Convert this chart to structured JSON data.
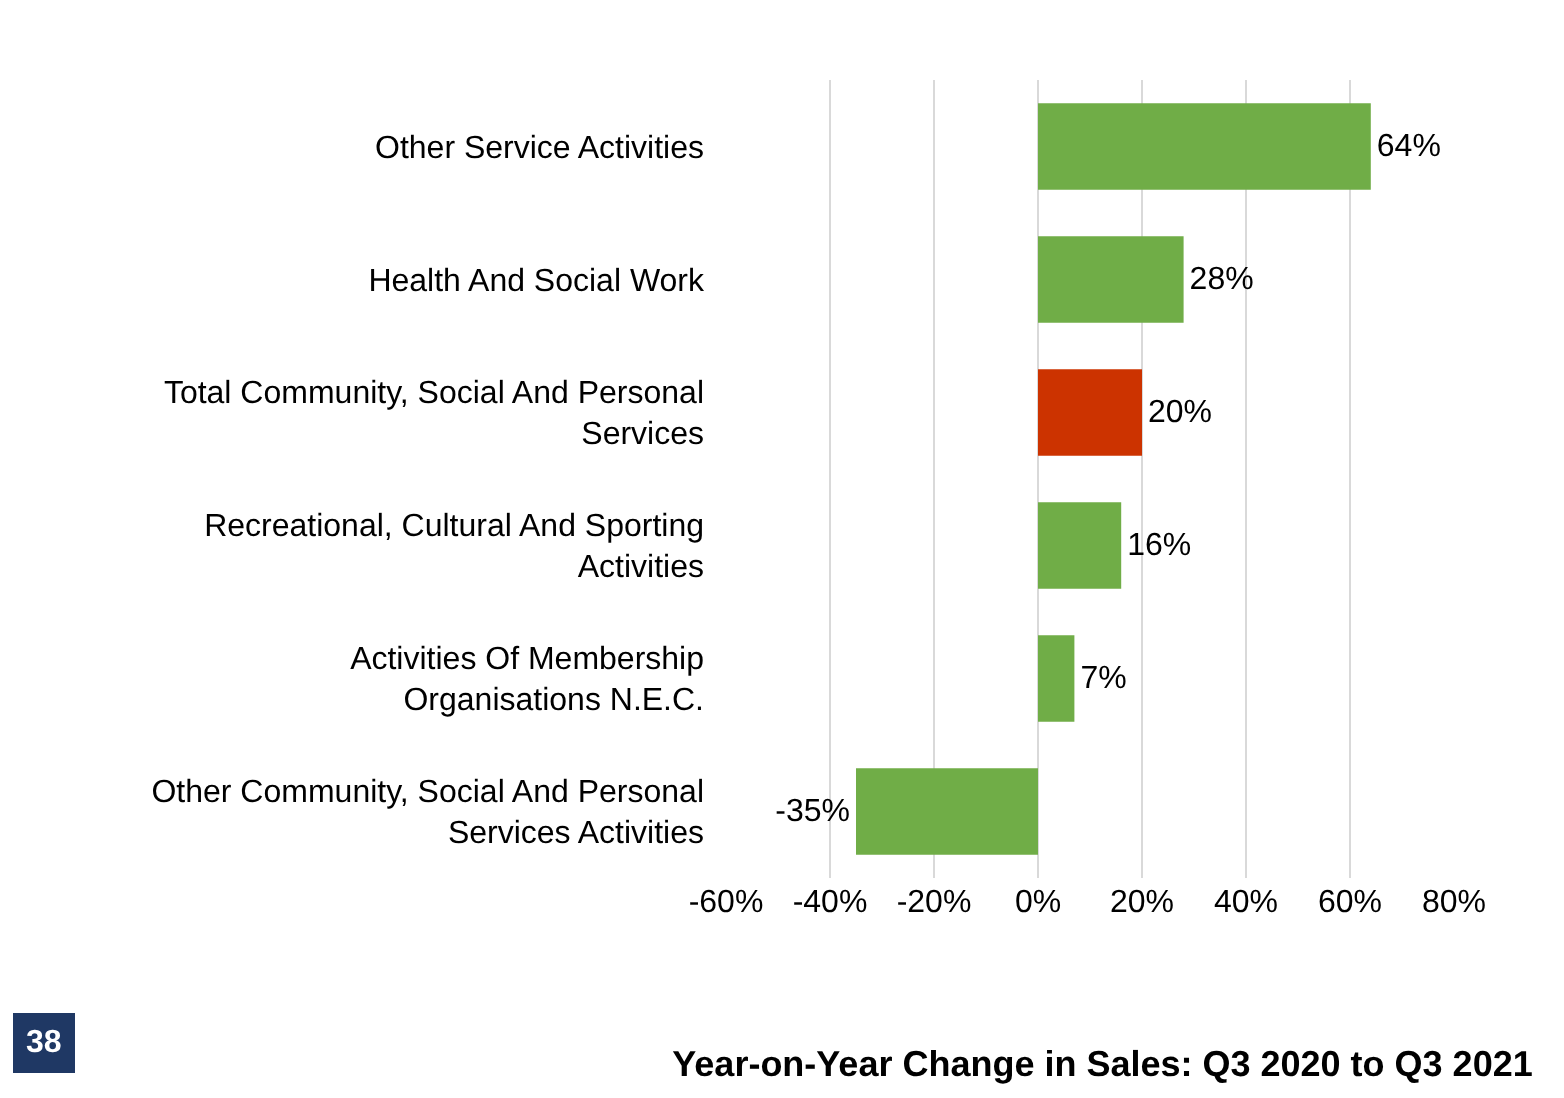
{
  "chart_data": {
    "type": "bar",
    "orientation": "horizontal",
    "title": "Year-on-Year Change in Sales: Q3 2020 to Q3 2021",
    "categories": [
      "Other Service Activities",
      "Health And Social Work",
      "Total Community, Social And Personal Services",
      "Recreational, Cultural And Sporting Activities",
      "Activities Of Membership Organisations N.E.C.",
      "Other Community, Social And Personal Services Activities"
    ],
    "values": [
      64,
      28,
      20,
      16,
      7,
      -35
    ],
    "colors": [
      "#70ad47",
      "#70ad47",
      "#cc3300",
      "#70ad47",
      "#70ad47",
      "#70ad47"
    ],
    "value_labels": [
      "64%",
      "28%",
      "20%",
      "16%",
      "7%",
      "-35%"
    ],
    "xlim": [
      -60,
      80
    ],
    "xticks": [
      {
        "value": -60,
        "label": "-60%"
      },
      {
        "value": -40,
        "label": "-40%"
      },
      {
        "value": -20,
        "label": "-20%"
      },
      {
        "value": 0,
        "label": "0%"
      },
      {
        "value": 20,
        "label": "20%"
      },
      {
        "value": 40,
        "label": "40%"
      },
      {
        "value": 60,
        "label": "60%"
      },
      {
        "value": 80,
        "label": "80%"
      }
    ],
    "grid": "x",
    "annotations": [
      "38"
    ]
  }
}
